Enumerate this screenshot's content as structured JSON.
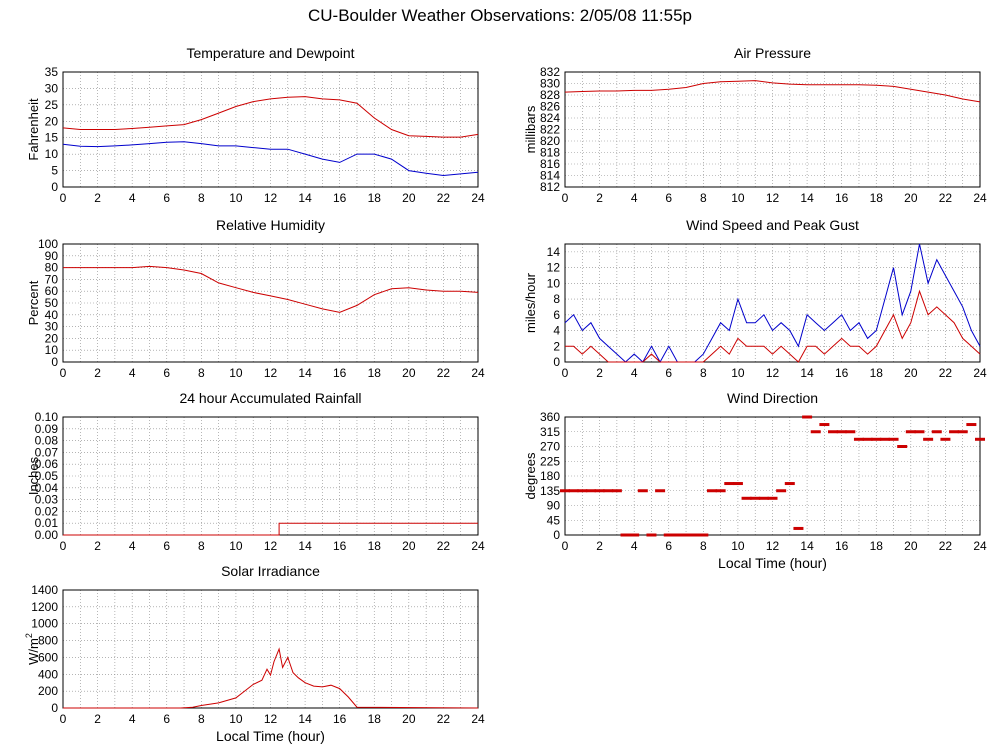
{
  "page": {
    "title": "CU-Boulder Weather Observations: 2/05/08 11:55p"
  },
  "chart_data": [
    {
      "type": "line",
      "title": "Temperature and Dewpoint",
      "ylabel": "Fahrenheit",
      "xlabel": "",
      "x_ticks": [
        0,
        2,
        4,
        6,
        8,
        10,
        12,
        14,
        16,
        18,
        20,
        22,
        24
      ],
      "y_ticks": [
        0,
        5,
        10,
        15,
        20,
        25,
        30,
        35
      ],
      "xlim": [
        0,
        24
      ],
      "ylim": [
        0,
        35
      ],
      "grid": true,
      "series": [
        {
          "color": "#cc0000",
          "x": [
            0,
            1,
            2,
            3,
            4,
            5,
            6,
            7,
            8,
            9,
            10,
            11,
            12,
            13,
            14,
            15,
            16,
            17,
            18,
            19,
            20,
            21,
            22,
            23,
            24
          ],
          "values": [
            18,
            17.5,
            17.5,
            17.5,
            17.8,
            18.2,
            18.6,
            19,
            20.5,
            22.5,
            24.5,
            26,
            26.8,
            27.3,
            27.5,
            26.8,
            26.5,
            25.5,
            21,
            17.5,
            15.6,
            15.4,
            15.2,
            15.2,
            16
          ]
        },
        {
          "color": "#0000cc",
          "x": [
            0,
            1,
            2,
            3,
            4,
            5,
            6,
            7,
            8,
            9,
            10,
            11,
            12,
            13,
            14,
            15,
            16,
            17,
            18,
            19,
            20,
            21,
            22,
            23,
            24
          ],
          "values": [
            13,
            12.4,
            12.3,
            12.5,
            12.8,
            13.2,
            13.6,
            13.8,
            13.2,
            12.5,
            12.5,
            12,
            11.5,
            11.5,
            10,
            8.5,
            7.5,
            10,
            10,
            8.5,
            5,
            4.2,
            3.5,
            4,
            4.5
          ]
        }
      ]
    },
    {
      "type": "line",
      "title": "Air Pressure",
      "ylabel": "millibars",
      "xlabel": "",
      "x_ticks": [
        0,
        2,
        4,
        6,
        8,
        10,
        12,
        14,
        16,
        18,
        20,
        22,
        24
      ],
      "y_ticks": [
        812,
        814,
        816,
        818,
        820,
        822,
        824,
        826,
        828,
        830,
        832
      ],
      "xlim": [
        0,
        24
      ],
      "ylim": [
        812,
        832
      ],
      "grid": true,
      "series": [
        {
          "color": "#cc0000",
          "x": [
            0,
            1,
            2,
            3,
            4,
            5,
            6,
            7,
            8,
            9,
            10,
            11,
            12,
            13,
            14,
            15,
            16,
            17,
            18,
            19,
            20,
            21,
            22,
            23,
            24
          ],
          "values": [
            828.5,
            828.6,
            828.7,
            828.7,
            828.8,
            828.8,
            829,
            829.3,
            830,
            830.3,
            830.4,
            830.5,
            830.1,
            829.9,
            829.8,
            829.8,
            829.8,
            829.8,
            829.7,
            829.5,
            829,
            828.5,
            828,
            827.3,
            826.8
          ]
        }
      ]
    },
    {
      "type": "line",
      "title": "Relative Humidity",
      "ylabel": "Percent",
      "xlabel": "",
      "x_ticks": [
        0,
        2,
        4,
        6,
        8,
        10,
        12,
        14,
        16,
        18,
        20,
        22,
        24
      ],
      "y_ticks": [
        0,
        10,
        20,
        30,
        40,
        50,
        60,
        70,
        80,
        90,
        100
      ],
      "xlim": [
        0,
        24
      ],
      "ylim": [
        0,
        100
      ],
      "grid": true,
      "series": [
        {
          "color": "#cc0000",
          "x": [
            0,
            1,
            2,
            3,
            4,
            5,
            6,
            7,
            8,
            9,
            10,
            11,
            12,
            13,
            14,
            15,
            16,
            17,
            18,
            19,
            20,
            21,
            22,
            23,
            24
          ],
          "values": [
            80,
            80,
            80,
            80,
            80,
            81,
            80,
            78,
            75,
            67,
            63,
            59,
            56,
            53,
            49,
            45,
            42,
            48,
            57,
            62,
            63,
            61,
            60,
            60,
            59
          ]
        }
      ]
    },
    {
      "type": "line",
      "title": "Wind Speed and Peak Gust",
      "ylabel": "miles/hour",
      "xlabel": "",
      "x_ticks": [
        0,
        2,
        4,
        6,
        8,
        10,
        12,
        14,
        16,
        18,
        20,
        22,
        24
      ],
      "y_ticks": [
        0,
        2,
        4,
        6,
        8,
        10,
        12,
        14
      ],
      "xlim": [
        0,
        24
      ],
      "ylim": [
        0,
        15
      ],
      "grid": true,
      "series": [
        {
          "color": "#0000cc",
          "x": [
            0,
            0.5,
            1,
            1.5,
            2,
            2.5,
            3,
            3.5,
            4,
            4.5,
            5,
            5.5,
            6,
            6.5,
            7,
            7.5,
            8,
            8.5,
            9,
            9.5,
            10,
            10.5,
            11,
            11.5,
            12,
            12.5,
            13,
            13.5,
            14,
            14.5,
            15,
            15.5,
            16,
            16.5,
            17,
            17.5,
            18,
            18.5,
            19,
            19.5,
            20,
            20.5,
            21,
            21.5,
            22,
            22.5,
            23,
            23.5,
            24
          ],
          "values": [
            5,
            6,
            4,
            5,
            3,
            2,
            1,
            0,
            1,
            0,
            2,
            0,
            2,
            0,
            0,
            0,
            1,
            3,
            5,
            4,
            8,
            5,
            5,
            6,
            4,
            5,
            4,
            2,
            6,
            5,
            4,
            5,
            6,
            4,
            5,
            3,
            4,
            8,
            12,
            6,
            9,
            15,
            10,
            13,
            11,
            9,
            7,
            4,
            2
          ]
        },
        {
          "color": "#cc0000",
          "x": [
            0,
            0.5,
            1,
            1.5,
            2,
            2.5,
            3,
            3.5,
            4,
            4.5,
            5,
            5.5,
            6,
            6.5,
            7,
            7.5,
            8,
            8.5,
            9,
            9.5,
            10,
            10.5,
            11,
            11.5,
            12,
            12.5,
            13,
            13.5,
            14,
            14.5,
            15,
            15.5,
            16,
            16.5,
            17,
            17.5,
            18,
            18.5,
            19,
            19.5,
            20,
            20.5,
            21,
            21.5,
            22,
            22.5,
            23,
            23.5,
            24
          ],
          "values": [
            2,
            2,
            1,
            2,
            1,
            0,
            0,
            0,
            0,
            0,
            1,
            0,
            0,
            0,
            0,
            0,
            0,
            1,
            2,
            1,
            3,
            2,
            2,
            2,
            1,
            2,
            1,
            0,
            2,
            2,
            1,
            2,
            3,
            2,
            2,
            1,
            2,
            4,
            6,
            3,
            5,
            9,
            6,
            7,
            6,
            5,
            3,
            2,
            1
          ]
        }
      ]
    },
    {
      "type": "line",
      "title": "24 hour Accumulated Rainfall",
      "ylabel": "Inches",
      "xlabel": "",
      "x_ticks": [
        0,
        2,
        4,
        6,
        8,
        10,
        12,
        14,
        16,
        18,
        20,
        22,
        24
      ],
      "y_ticks": [
        "0.00",
        "0.01",
        "0.02",
        "0.03",
        "0.04",
        "0.05",
        "0.06",
        "0.07",
        "0.08",
        "0.09",
        "0.10"
      ],
      "xlim": [
        0,
        24
      ],
      "ylim": [
        0,
        0.1
      ],
      "grid": true,
      "series": [
        {
          "color": "#cc0000",
          "x": [
            0,
            12.5,
            12.5,
            24
          ],
          "values": [
            0,
            0,
            0.01,
            0.01
          ]
        }
      ]
    },
    {
      "type": "scatter",
      "title": "Wind Direction",
      "ylabel": "degrees",
      "xlabel": "Local Time (hour)",
      "x_ticks": [
        0,
        2,
        4,
        6,
        8,
        10,
        12,
        14,
        16,
        18,
        20,
        22,
        24
      ],
      "y_ticks": [
        0,
        45,
        90,
        135,
        180,
        225,
        270,
        315,
        360
      ],
      "xlim": [
        0,
        24
      ],
      "ylim": [
        0,
        360
      ],
      "grid": true,
      "series": [
        {
          "color": "#cc0000",
          "x": [
            0,
            0.5,
            1,
            1.5,
            2,
            2.5,
            3,
            3.5,
            4,
            4.5,
            5,
            5.5,
            6,
            6.5,
            7,
            7.5,
            8,
            8.5,
            9,
            9.5,
            10,
            10.5,
            11,
            11.5,
            12,
            12.5,
            13,
            13.5,
            14,
            14.5,
            15,
            15.5,
            16,
            16.5,
            17,
            17.5,
            18,
            18.5,
            19,
            19.5,
            20,
            20.5,
            21,
            21.5,
            22,
            22.5,
            23,
            23.5,
            24
          ],
          "values": [
            135,
            135,
            135,
            135,
            135,
            135,
            135,
            0,
            0,
            135,
            0,
            135,
            0,
            0,
            0,
            0,
            0,
            135,
            135,
            157,
            157,
            112,
            112,
            112,
            112,
            135,
            157,
            20,
            360,
            315,
            337,
            315,
            315,
            315,
            292,
            292,
            292,
            292,
            292,
            270,
            315,
            315,
            292,
            315,
            292,
            315,
            315,
            337,
            292
          ]
        }
      ]
    },
    {
      "type": "line",
      "title": "Solar Irradiance",
      "ylabel": "W/m²",
      "ylabel_text": "W/m",
      "ylabel_sup": "2",
      "xlabel": "Local Time (hour)",
      "x_ticks": [
        0,
        2,
        4,
        6,
        8,
        10,
        12,
        14,
        16,
        18,
        20,
        22,
        24
      ],
      "y_ticks": [
        0,
        200,
        400,
        600,
        800,
        1000,
        1200,
        1400
      ],
      "xlim": [
        0,
        24
      ],
      "ylim": [
        0,
        1400
      ],
      "grid": true,
      "series": [
        {
          "color": "#cc0000",
          "x": [
            0,
            6.8,
            7.5,
            8,
            9,
            10,
            10.5,
            11,
            11.5,
            11.8,
            12,
            12.2,
            12.5,
            12.7,
            13,
            13.3,
            13.6,
            14,
            14.5,
            15,
            15.5,
            16,
            16.5,
            17,
            24
          ],
          "values": [
            0,
            0,
            10,
            30,
            60,
            120,
            200,
            280,
            330,
            460,
            390,
            550,
            700,
            480,
            600,
            420,
            360,
            300,
            260,
            250,
            270,
            230,
            130,
            10,
            0
          ]
        }
      ]
    }
  ]
}
